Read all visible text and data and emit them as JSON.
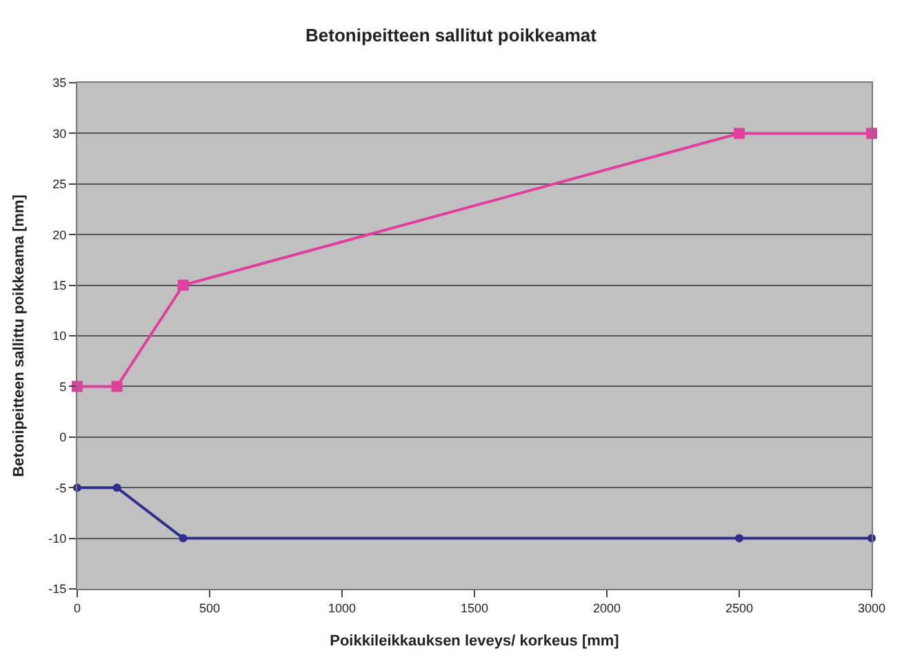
{
  "chart_data": {
    "type": "line",
    "title": "Betonipeitteen sallitut poikkeamat",
    "xlabel": "Poikkileikkauksen leveys/ korkeus [mm]",
    "ylabel": "Betonipeitteen sallittu poikkeama [mm]",
    "x": [
      0,
      150,
      400,
      2500,
      3000
    ],
    "series": [
      {
        "color": "#e0409c",
        "values": [
          5,
          5,
          15,
          30,
          30
        ],
        "marker": "square"
      },
      {
        "color": "#2e2e8e",
        "values": [
          -5,
          -5,
          -10,
          -10,
          -10
        ],
        "marker": "circle"
      }
    ],
    "xlim": [
      0,
      3000
    ],
    "xticks": [
      0,
      500,
      1000,
      1500,
      2000,
      2500,
      3000
    ],
    "ylim": [
      -15,
      35
    ],
    "yticks": [
      -15,
      -10,
      -5,
      0,
      5,
      10,
      15,
      20,
      25,
      30,
      35
    ],
    "grid": "y",
    "legend": false
  }
}
